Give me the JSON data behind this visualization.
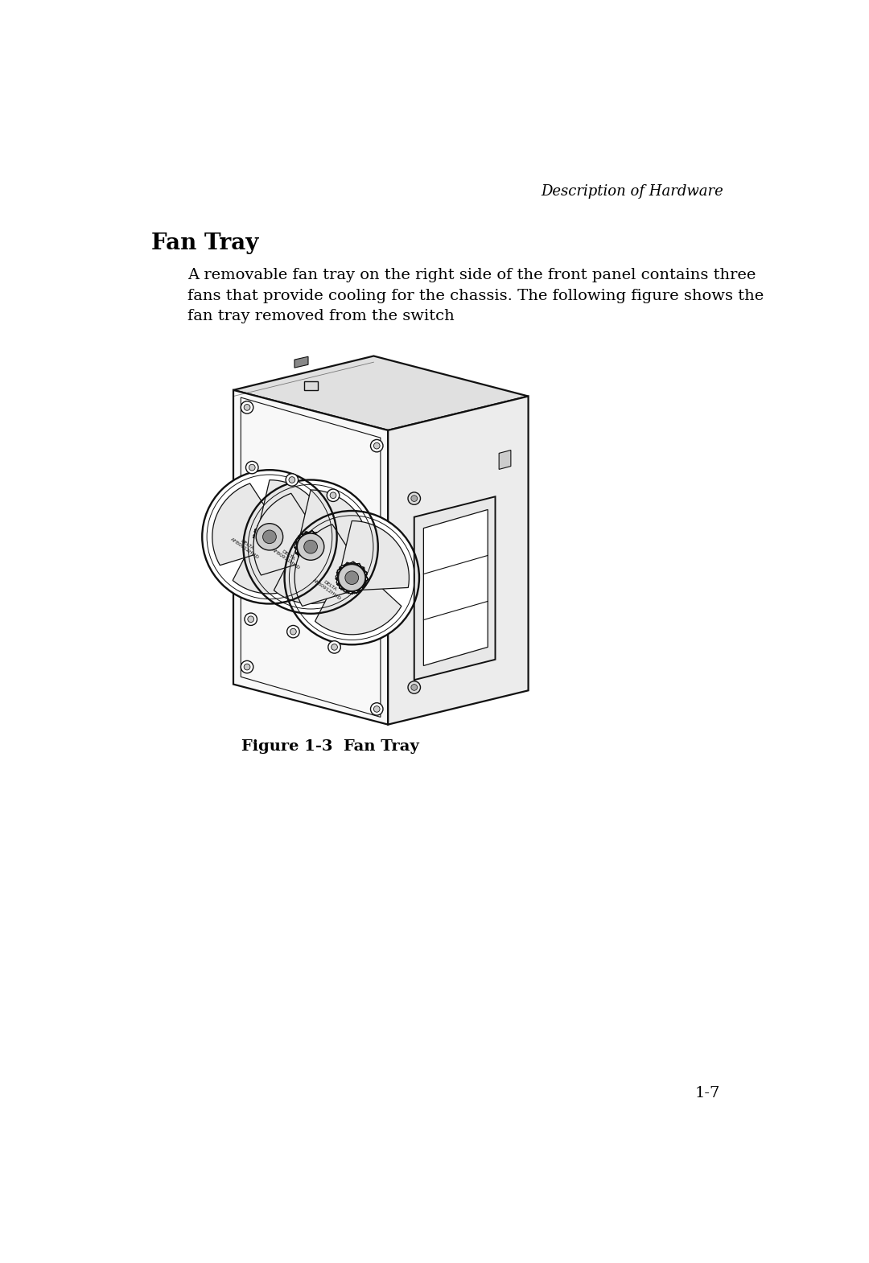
{
  "page_header": "Description of Hardware",
  "section_title": "Fan Tray",
  "body_text_line1": "A removable fan tray on the right side of the front panel contains three",
  "body_text_line2": "fans that provide cooling for the chassis. The following figure shows the",
  "body_text_line3": "fan tray removed from the switch",
  "figure_caption": "Figure 1-3  Fan Tray",
  "page_number": "1-7",
  "bg_color": "#ffffff",
  "text_color": "#000000",
  "header_font_size": 13,
  "title_font_size": 20,
  "body_font_size": 14,
  "caption_font_size": 14,
  "page_num_font_size": 14,
  "line_color": "#111111",
  "face_color_front": "#f8f8f8",
  "face_color_top": "#e0e0e0",
  "face_color_right": "#ececec"
}
